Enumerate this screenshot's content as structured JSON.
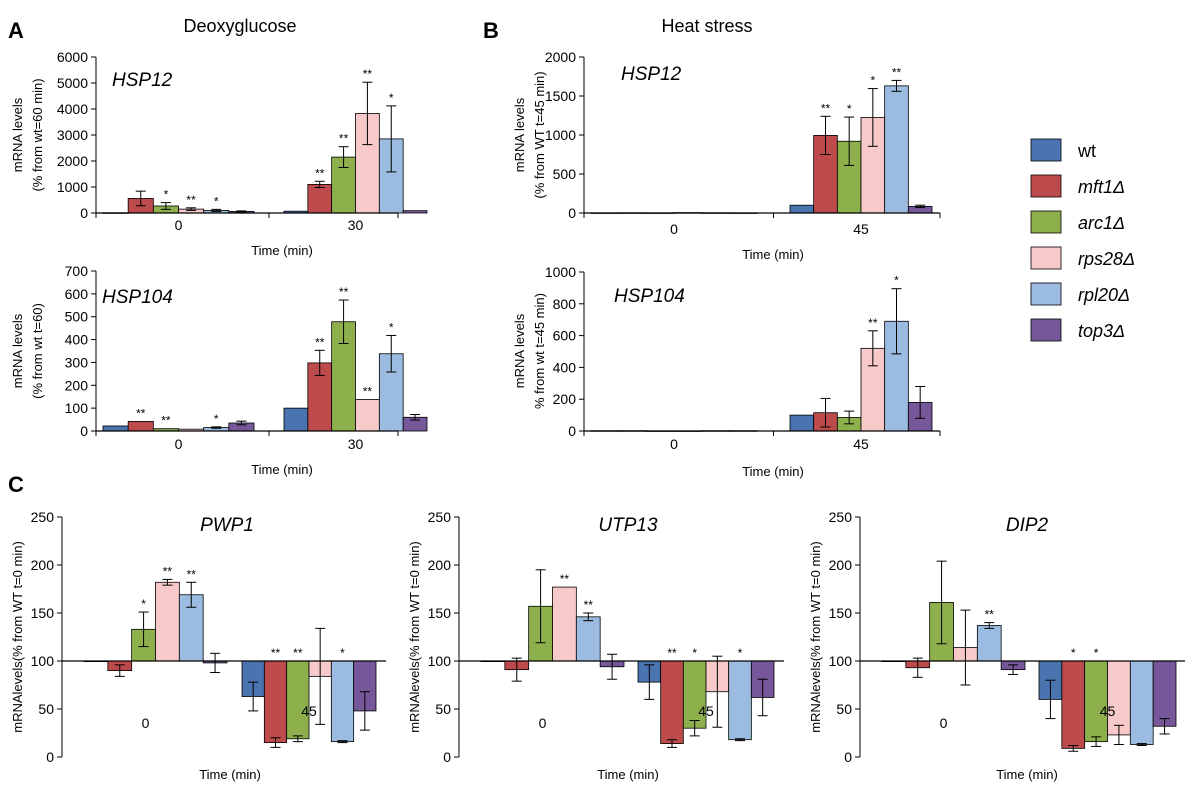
{
  "panels": {
    "A": "A",
    "B": "B",
    "C": "C"
  },
  "headings": {
    "deoxyglucose": "Deoxyglucose",
    "heat_stress": "Heat stress"
  },
  "legend": [
    {
      "label": "wt",
      "italic": false
    },
    {
      "label": "mft1Δ",
      "italic": true
    },
    {
      "label": "arc1Δ",
      "italic": true
    },
    {
      "label": "rps28Δ",
      "italic": true
    },
    {
      "label": "rpl20Δ",
      "italic": true
    },
    {
      "label": "top3Δ",
      "italic": true
    }
  ],
  "colors": [
    "#4a74b0",
    "#be4b4b",
    "#8db04d",
    "#f7c9c9",
    "#9cbbe0",
    "#76579a"
  ],
  "chart_data": [
    {
      "id": "A1",
      "type": "bar",
      "title": "HSP12",
      "xlabel": "Time (min)",
      "ylabel": [
        "mRNA levels",
        "(% from wt=60 min)"
      ],
      "categories": [
        "0",
        "30"
      ],
      "ylim": [
        0,
        6000
      ],
      "yticks": [
        0,
        1000,
        2000,
        3000,
        4000,
        5000,
        6000
      ],
      "baseline": 0,
      "series": [
        {
          "name": "wt",
          "values": [
            10,
            70
          ],
          "err": [
            0,
            0
          ],
          "stars": [
            "",
            ""
          ]
        },
        {
          "name": "mft1Δ",
          "values": [
            560,
            1100
          ],
          "err": [
            280,
            120
          ],
          "stars": [
            "",
            "**"
          ]
        },
        {
          "name": "arc1Δ",
          "values": [
            270,
            2150
          ],
          "err": [
            130,
            400
          ],
          "stars": [
            "*",
            "**"
          ]
        },
        {
          "name": "rps28Δ",
          "values": [
            150,
            3830
          ],
          "err": [
            50,
            1200
          ],
          "stars": [
            "**",
            "**"
          ]
        },
        {
          "name": "rpl20Δ",
          "values": [
            100,
            2850
          ],
          "err": [
            40,
            1270
          ],
          "stars": [
            "*",
            "*"
          ]
        },
        {
          "name": "top3Δ",
          "values": [
            60,
            90
          ],
          "err": [
            20,
            0
          ],
          "stars": [
            "",
            ""
          ]
        }
      ]
    },
    {
      "id": "A2",
      "type": "bar",
      "title": "HSP104",
      "xlabel": "Time (min)",
      "ylabel": [
        "mRNA levels",
        "(% from wt t=60)"
      ],
      "categories": [
        "0",
        "30"
      ],
      "ylim": [
        0,
        700
      ],
      "yticks": [
        0,
        100,
        200,
        300,
        400,
        500,
        600,
        700
      ],
      "baseline": 0,
      "series": [
        {
          "name": "wt",
          "values": [
            22,
            100
          ],
          "err": [
            0,
            0
          ],
          "stars": [
            "",
            ""
          ]
        },
        {
          "name": "mft1Δ",
          "values": [
            42,
            298
          ],
          "err": [
            0,
            55
          ],
          "stars": [
            "**",
            "**"
          ]
        },
        {
          "name": "arc1Δ",
          "values": [
            10,
            478
          ],
          "err": [
            0,
            95
          ],
          "stars": [
            "**",
            "**"
          ]
        },
        {
          "name": "rps28Δ",
          "values": [
            8,
            138
          ],
          "err": [
            0,
            0
          ],
          "stars": [
            "",
            "**"
          ]
        },
        {
          "name": "rpl20Δ",
          "values": [
            15,
            338
          ],
          "err": [
            3,
            80
          ],
          "stars": [
            "*",
            "*"
          ]
        },
        {
          "name": "top3Δ",
          "values": [
            35,
            60
          ],
          "err": [
            8,
            12
          ],
          "stars": [
            "",
            ""
          ]
        }
      ]
    },
    {
      "id": "B1",
      "type": "bar",
      "title": "HSP12",
      "xlabel": "Time (min)",
      "ylabel": [
        "mRNA levels",
        "(% from WT t=45 min)"
      ],
      "categories": [
        "0",
        "45"
      ],
      "ylim": [
        0,
        2000
      ],
      "yticks": [
        0,
        500,
        1000,
        1500,
        2000
      ],
      "baseline": 0,
      "series": [
        {
          "name": "wt",
          "values": [
            2,
            100
          ],
          "err": [
            0,
            0
          ],
          "stars": [
            "",
            ""
          ]
        },
        {
          "name": "mft1Δ",
          "values": [
            3,
            995
          ],
          "err": [
            0,
            245
          ],
          "stars": [
            "",
            "**"
          ]
        },
        {
          "name": "arc1Δ",
          "values": [
            2,
            920
          ],
          "err": [
            0,
            310
          ],
          "stars": [
            "",
            "*"
          ]
        },
        {
          "name": "rps28Δ",
          "values": [
            5,
            1225
          ],
          "err": [
            0,
            370
          ],
          "stars": [
            "",
            "*"
          ]
        },
        {
          "name": "rpl20Δ",
          "values": [
            3,
            1630
          ],
          "err": [
            0,
            70
          ],
          "stars": [
            "",
            "**"
          ]
        },
        {
          "name": "top3Δ",
          "values": [
            2,
            85
          ],
          "err": [
            0,
            15
          ],
          "stars": [
            "",
            ""
          ]
        }
      ]
    },
    {
      "id": "B2",
      "type": "bar",
      "title": "HSP104",
      "xlabel": "Time (min)",
      "ylabel": [
        "mRNA levels",
        "% from wt t=45 min)"
      ],
      "categories": [
        "0",
        "45"
      ],
      "ylim": [
        0,
        1000
      ],
      "yticks": [
        0,
        200,
        400,
        600,
        800,
        1000
      ],
      "baseline": 0,
      "series": [
        {
          "name": "wt",
          "values": [
            2,
            100
          ],
          "err": [
            0,
            0
          ],
          "stars": [
            "",
            ""
          ]
        },
        {
          "name": "mft1Δ",
          "values": [
            2,
            115
          ],
          "err": [
            0,
            90
          ],
          "stars": [
            "",
            ""
          ]
        },
        {
          "name": "arc1Δ",
          "values": [
            1,
            85
          ],
          "err": [
            0,
            40
          ],
          "stars": [
            "",
            ""
          ]
        },
        {
          "name": "rps28Δ",
          "values": [
            1,
            520
          ],
          "err": [
            0,
            110
          ],
          "stars": [
            "",
            "**"
          ]
        },
        {
          "name": "rpl20Δ",
          "values": [
            2,
            690
          ],
          "err": [
            0,
            205
          ],
          "stars": [
            "",
            "*"
          ]
        },
        {
          "name": "top3Δ",
          "values": [
            2,
            180
          ],
          "err": [
            0,
            100
          ],
          "stars": [
            "",
            ""
          ]
        }
      ]
    },
    {
      "id": "C1",
      "type": "bar",
      "title": "PWP1",
      "xlabel": "Time (min)",
      "ylabel": [
        "mRNAlevels(% from WT t=0 min)"
      ],
      "categories": [
        "0",
        "45"
      ],
      "ylim": [
        0,
        250
      ],
      "yticks": [
        0,
        50,
        100,
        150,
        200,
        250
      ],
      "baseline": 100,
      "series": [
        {
          "name": "wt",
          "values": [
            100,
            63
          ],
          "err": [
            0,
            15
          ],
          "stars": [
            "",
            ""
          ]
        },
        {
          "name": "mft1Δ",
          "values": [
            90,
            15
          ],
          "err": [
            6,
            5
          ],
          "stars": [
            "",
            "**"
          ]
        },
        {
          "name": "arc1Δ",
          "values": [
            133,
            19
          ],
          "err": [
            18,
            3
          ],
          "stars": [
            "*",
            "**"
          ]
        },
        {
          "name": "rps28Δ",
          "values": [
            182,
            84
          ],
          "err": [
            3,
            50
          ],
          "stars": [
            "**",
            ""
          ]
        },
        {
          "name": "rpl20Δ",
          "values": [
            169,
            16
          ],
          "err": [
            13,
            1
          ],
          "stars": [
            "**",
            "*"
          ]
        },
        {
          "name": "top3Δ",
          "values": [
            98,
            48
          ],
          "err": [
            10,
            20
          ],
          "stars": [
            "",
            ""
          ]
        }
      ]
    },
    {
      "id": "C2",
      "type": "bar",
      "title": "UTP13",
      "xlabel": "Time (min)",
      "ylabel": [
        "mRNAlevels(% from WT t=0 min)"
      ],
      "categories": [
        "0",
        "45"
      ],
      "ylim": [
        0,
        250
      ],
      "yticks": [
        0,
        50,
        100,
        150,
        200,
        250
      ],
      "baseline": 100,
      "series": [
        {
          "name": "wt",
          "values": [
            100,
            78
          ],
          "err": [
            0,
            18
          ],
          "stars": [
            "",
            ""
          ]
        },
        {
          "name": "mft1Δ",
          "values": [
            91,
            14
          ],
          "err": [
            12,
            4
          ],
          "stars": [
            "",
            "**"
          ]
        },
        {
          "name": "arc1Δ",
          "values": [
            157,
            30
          ],
          "err": [
            38,
            8
          ],
          "stars": [
            "",
            "*"
          ]
        },
        {
          "name": "rps28Δ",
          "values": [
            177,
            68
          ],
          "err": [
            0,
            37
          ],
          "stars": [
            "**",
            ""
          ]
        },
        {
          "name": "rpl20Δ",
          "values": [
            146,
            18
          ],
          "err": [
            4,
            1
          ],
          "stars": [
            "**",
            "*"
          ]
        },
        {
          "name": "top3Δ",
          "values": [
            94,
            62
          ],
          "err": [
            13,
            19
          ],
          "stars": [
            "",
            ""
          ]
        }
      ]
    },
    {
      "id": "C3",
      "type": "bar",
      "title": "DIP2",
      "xlabel": "Time (min)",
      "ylabel": [
        "mRNAlevels(% from WT t=0 min)"
      ],
      "categories": [
        "0",
        "45"
      ],
      "ylim": [
        0,
        250
      ],
      "yticks": [
        0,
        50,
        100,
        150,
        200,
        250
      ],
      "baseline": 100,
      "series": [
        {
          "name": "wt",
          "values": [
            100,
            60
          ],
          "err": [
            0,
            20
          ],
          "stars": [
            "",
            ""
          ]
        },
        {
          "name": "mft1Δ",
          "values": [
            93,
            9
          ],
          "err": [
            10,
            3
          ],
          "stars": [
            "",
            "*"
          ]
        },
        {
          "name": "arc1Δ",
          "values": [
            161,
            16
          ],
          "err": [
            43,
            5
          ],
          "stars": [
            "",
            "*"
          ]
        },
        {
          "name": "rps28Δ",
          "values": [
            114,
            23
          ],
          "err": [
            39,
            10
          ],
          "stars": [
            "",
            ""
          ]
        },
        {
          "name": "rpl20Δ",
          "values": [
            137,
            13
          ],
          "err": [
            3,
            1
          ],
          "stars": [
            "**",
            ""
          ]
        },
        {
          "name": "top3Δ",
          "values": [
            91,
            32
          ],
          "err": [
            5,
            8
          ],
          "stars": [
            "",
            ""
          ]
        }
      ]
    }
  ]
}
